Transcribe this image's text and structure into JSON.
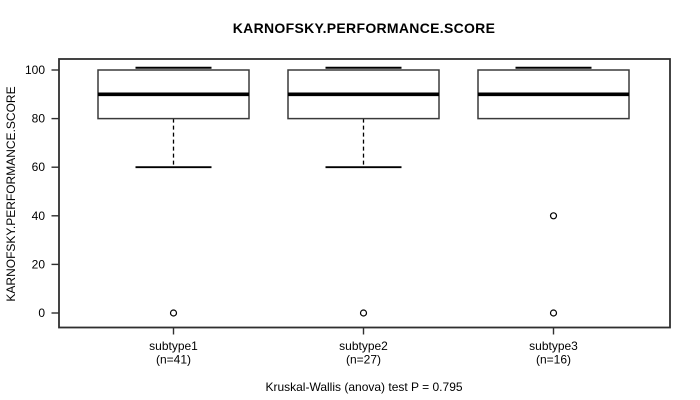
{
  "chart_data": {
    "type": "boxplot",
    "title": "KARNOFSKY.PERFORMANCE.SCORE",
    "ylabel": "KARNOFSKY.PERFORMANCE.SCORE",
    "xlabel": "",
    "caption": "Kruskal-Wallis (anova) test P = 0.795",
    "ylim": [
      0,
      100
    ],
    "yticks": [
      0,
      20,
      40,
      60,
      80,
      100
    ],
    "grid": false,
    "legend": "none",
    "categories": [
      "subtype1",
      "subtype2",
      "subtype3"
    ],
    "counts": [
      "(n=41)",
      "(n=27)",
      "(n=16)"
    ],
    "series": [
      {
        "name": "subtype1",
        "n": 41,
        "whisker_low": 60,
        "q1": 80,
        "median": 90,
        "q3": 100,
        "whisker_high": 100,
        "outliers": [
          0
        ]
      },
      {
        "name": "subtype2",
        "n": 27,
        "whisker_low": 60,
        "q1": 80,
        "median": 90,
        "q3": 100,
        "whisker_high": 100,
        "outliers": [
          0
        ]
      },
      {
        "name": "subtype3",
        "n": 16,
        "whisker_low": 80,
        "q1": 80,
        "median": 90,
        "q3": 100,
        "whisker_high": 100,
        "outliers": [
          40,
          0
        ]
      }
    ],
    "colors": {
      "background": "#ffffff",
      "frame": "#2f2f2f",
      "box_stroke": "#3a3a3a",
      "box_fill": "#ffffff",
      "median": "#000000",
      "whisker": "#000000",
      "text": "#000000"
    }
  }
}
